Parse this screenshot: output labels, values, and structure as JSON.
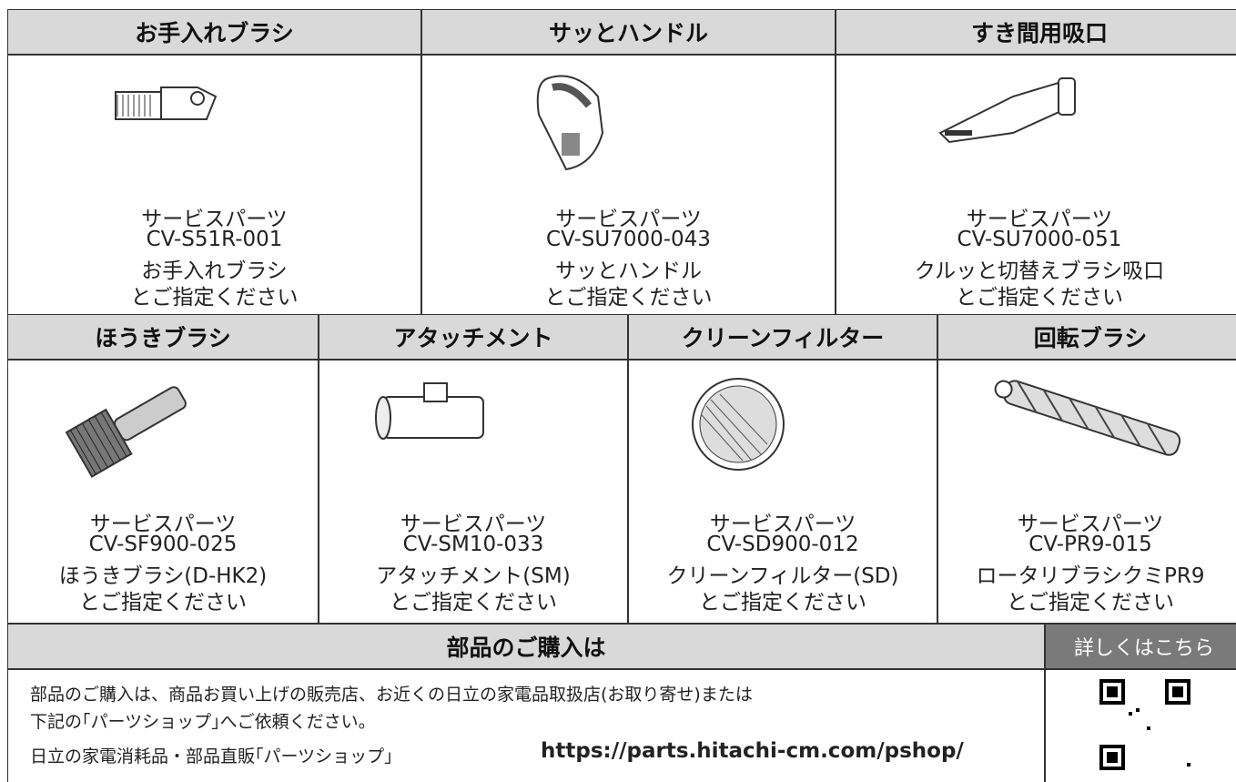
{
  "parts": [
    {
      "title": "お手入れブラシ",
      "lines": [
        "サービスパーツ",
        "CV-S51R-001",
        "お手入れブラシ",
        "とご指定ください"
      ]
    },
    {
      "title": "サッとハンドル",
      "lines": [
        "サービスパーツ",
        "CV-SU7000-043",
        "サッとハンドル",
        "とご指定ください"
      ]
    },
    {
      "title": "すき間用吸口",
      "lines": [
        "サービスパーツ",
        "CV-SU7000-051",
        "クルッと切替えブラシ吸口",
        "とご指定ください"
      ]
    },
    {
      "title": "ほうきブラシ",
      "lines": [
        "サービスパーツ",
        "CV-SF900-025",
        "ほうきブラシ(D-HK2)",
        "とご指定ください"
      ]
    },
    {
      "title": "アタッチメント",
      "lines": [
        "サービスパーツ",
        "CV-SM10-033",
        "アタッチメント(SM)",
        "とご指定ください"
      ]
    },
    {
      "title": "クリーンフィルター",
      "lines": [
        "サービスパーツ",
        "CV-SD900-012",
        "クリーンフィルター(SD)",
        "とご指定ください"
      ]
    },
    {
      "title": "回転ブラシ",
      "lines": [
        "サービスパーツ",
        "CV-PR9-015",
        "ロータリブラシクミPR9",
        "とご指定ください"
      ]
    }
  ],
  "purchase": {
    "title": "部品のご購入は",
    "lines": [
      "部品のご購入は、商品お買い上げの販売店、お近くの日立の家電品取扱店(お取り寄せ)または",
      "下記の｢パーツショップ｣へご依頼ください。"
    ],
    "shop": "日立の家電消耗品・部品直販｢パーツショップ｣",
    "url": "https://parts.hitachi-cm.com/pshop/",
    "qr_title": "詳しくはこちら"
  }
}
